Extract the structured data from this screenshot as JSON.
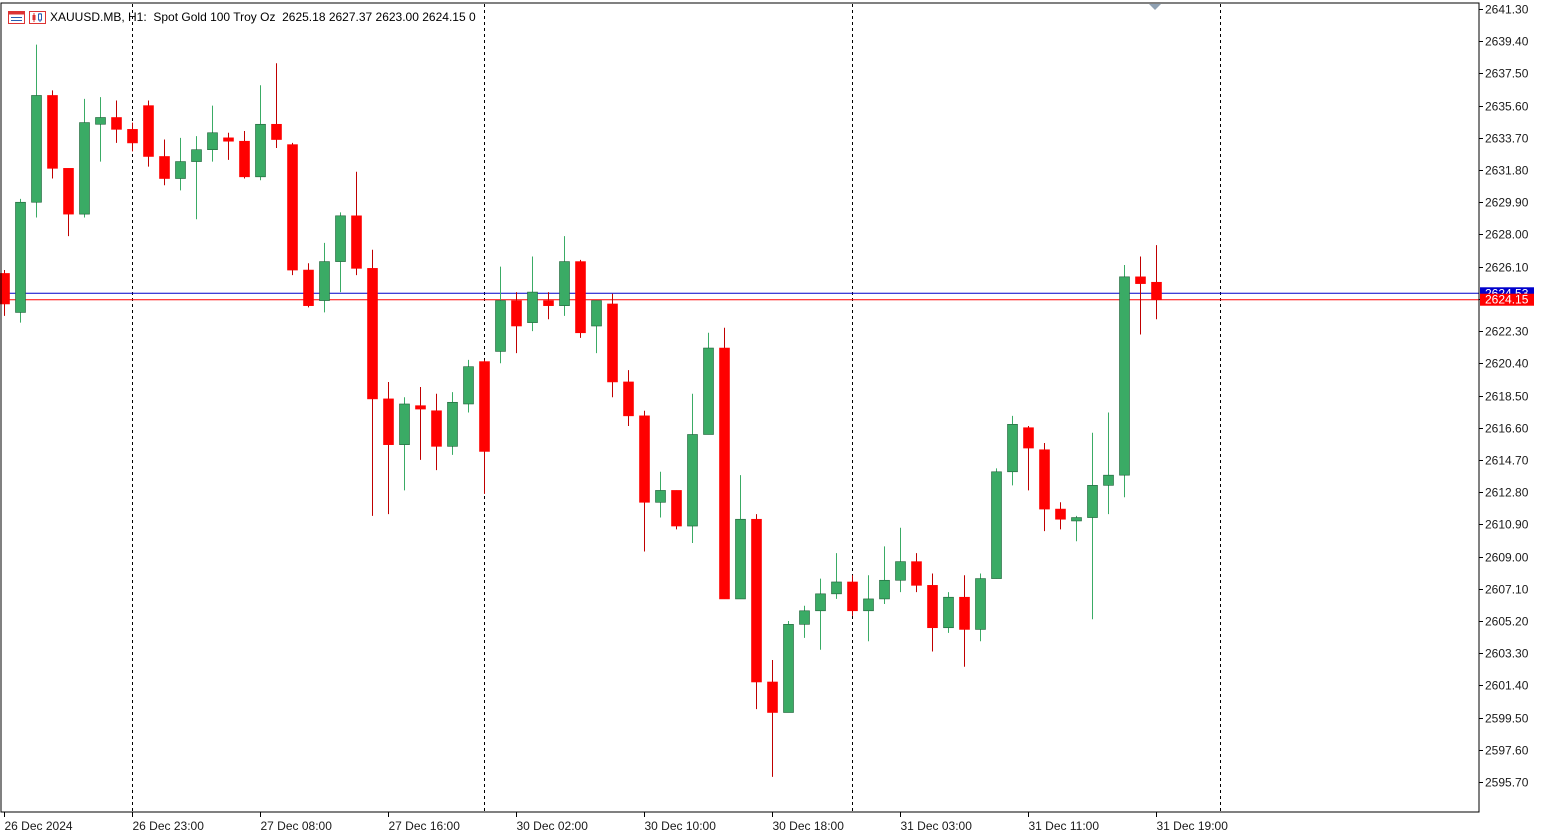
{
  "header": {
    "symbol": "XAUUSD.MB",
    "timeframe": "H1:",
    "description": "Spot Gold 100 Troy Oz",
    "ohlc": "2625.18 2627.37 2623.00 2624.15",
    "volume": "0"
  },
  "price_tags": {
    "bid": "2624.53",
    "last": "2624.15"
  },
  "colors": {
    "bull": "#3aab65",
    "bear": "#ff0000",
    "wick_bull": "#3aab65",
    "wick_bear": "#c00000",
    "bid_line": "#0000cc",
    "last_line": "#ff0000",
    "grid": "#000000",
    "axis": "#000000"
  },
  "chart_data": {
    "type": "candlestick",
    "symbol": "XAUUSD.MB",
    "timeframe": "H1",
    "ylim": [
      2594.4,
      2641.6
    ],
    "y_ticks": [
      "2641.30",
      "2639.40",
      "2637.50",
      "2635.60",
      "2633.70",
      "2631.80",
      "2629.90",
      "2628.00",
      "2626.10",
      "2624.20",
      "2622.30",
      "2620.40",
      "2618.50",
      "2616.60",
      "2614.70",
      "2612.80",
      "2610.90",
      "2609.00",
      "2607.10",
      "2605.20",
      "2603.30",
      "2601.40",
      "2599.50",
      "2597.60",
      "2595.70"
    ],
    "x_labels": [
      {
        "index": 0,
        "text": "26 Dec 2024"
      },
      {
        "index": 8,
        "text": "26 Dec 23:00"
      },
      {
        "index": 16,
        "text": "27 Dec 08:00"
      },
      {
        "index": 24,
        "text": "27 Dec 16:00"
      },
      {
        "index": 32,
        "text": "30 Dec 02:00"
      },
      {
        "index": 40,
        "text": "30 Dec 10:00"
      },
      {
        "index": 48,
        "text": "30 Dec 18:00"
      },
      {
        "index": 56,
        "text": "31 Dec 03:00"
      },
      {
        "index": 64,
        "text": "31 Dec 11:00"
      },
      {
        "index": 72,
        "text": "31 Dec 19:00"
      }
    ],
    "separators_after_index": [
      8.5,
      30.5,
      53.5,
      76.5
    ],
    "bid": 2624.53,
    "last": 2624.15,
    "candles": [
      [
        2625.7,
        2625.9,
        2623.2,
        2623.9
      ],
      [
        2623.4,
        2630.1,
        2622.8,
        2629.9
      ],
      [
        2629.9,
        2639.2,
        2629.0,
        2636.2
      ],
      [
        2636.2,
        2636.5,
        2631.3,
        2631.9
      ],
      [
        2631.9,
        2631.9,
        2627.9,
        2629.2
      ],
      [
        2629.2,
        2636.0,
        2629.0,
        2634.6
      ],
      [
        2634.5,
        2636.1,
        2632.3,
        2634.9
      ],
      [
        2634.9,
        2635.9,
        2633.4,
        2634.2
      ],
      [
        2634.2,
        2634.6,
        2632.9,
        2633.4
      ],
      [
        2635.6,
        2635.9,
        2632.0,
        2632.6
      ],
      [
        2632.6,
        2633.6,
        2630.9,
        2631.3
      ],
      [
        2631.3,
        2633.7,
        2630.6,
        2632.3
      ],
      [
        2632.3,
        2633.8,
        2628.9,
        2633.0
      ],
      [
        2633.0,
        2635.6,
        2632.3,
        2634.0
      ],
      [
        2633.7,
        2634.0,
        2632.4,
        2633.5
      ],
      [
        2633.5,
        2634.1,
        2631.3,
        2631.4
      ],
      [
        2631.4,
        2636.8,
        2631.2,
        2634.5
      ],
      [
        2634.5,
        2638.1,
        2633.1,
        2633.6
      ],
      [
        2633.3,
        2633.4,
        2625.6,
        2625.9
      ],
      [
        2625.9,
        2626.3,
        2623.7,
        2623.8
      ],
      [
        2624.1,
        2627.5,
        2623.4,
        2626.4
      ],
      [
        2626.4,
        2629.3,
        2624.6,
        2629.1
      ],
      [
        2629.1,
        2631.7,
        2625.6,
        2626.0
      ],
      [
        2626.0,
        2627.1,
        2611.4,
        2618.3
      ],
      [
        2618.3,
        2619.3,
        2611.5,
        2615.6
      ],
      [
        2615.6,
        2618.4,
        2612.9,
        2618.0
      ],
      [
        2617.9,
        2619.0,
        2614.7,
        2617.7
      ],
      [
        2617.6,
        2618.6,
        2614.1,
        2615.5
      ],
      [
        2615.5,
        2618.7,
        2615.0,
        2618.1
      ],
      [
        2618.0,
        2620.6,
        2617.5,
        2620.2
      ],
      [
        2620.5,
        2620.6,
        2612.7,
        2615.2
      ],
      [
        2621.1,
        2626.1,
        2620.4,
        2624.1
      ],
      [
        2624.1,
        2624.6,
        2621.0,
        2622.6
      ],
      [
        2622.8,
        2626.7,
        2622.3,
        2624.6
      ],
      [
        2624.1,
        2624.6,
        2623.0,
        2623.8
      ],
      [
        2623.8,
        2627.9,
        2623.2,
        2626.4
      ],
      [
        2626.4,
        2626.5,
        2621.9,
        2622.2
      ],
      [
        2622.6,
        2624.1,
        2621.0,
        2624.1
      ],
      [
        2623.9,
        2624.5,
        2618.4,
        2619.3
      ],
      [
        2619.3,
        2620.0,
        2616.7,
        2617.3
      ],
      [
        2617.3,
        2617.6,
        2609.3,
        2612.2
      ],
      [
        2612.2,
        2614.0,
        2611.3,
        2612.9
      ],
      [
        2612.9,
        2612.9,
        2610.6,
        2610.8
      ],
      [
        2610.8,
        2618.6,
        2609.8,
        2616.2
      ],
      [
        2616.2,
        2622.2,
        2616.2,
        2621.3
      ],
      [
        2621.3,
        2622.5,
        2606.5,
        2606.5
      ],
      [
        2606.5,
        2613.8,
        2606.5,
        2611.2
      ],
      [
        2611.2,
        2611.5,
        2600.0,
        2601.6
      ],
      [
        2601.6,
        2602.9,
        2596.0,
        2599.8
      ],
      [
        2599.8,
        2605.2,
        2599.8,
        2605.0
      ],
      [
        2605.0,
        2606.1,
        2604.2,
        2605.8
      ],
      [
        2605.8,
        2607.7,
        2603.5,
        2606.8
      ],
      [
        2606.8,
        2609.2,
        2606.5,
        2607.5
      ],
      [
        2607.5,
        2607.9,
        2605.5,
        2605.8
      ],
      [
        2605.8,
        2607.9,
        2604.0,
        2606.5
      ],
      [
        2606.5,
        2609.6,
        2606.2,
        2607.6
      ],
      [
        2607.6,
        2610.7,
        2606.9,
        2608.7
      ],
      [
        2608.7,
        2609.2,
        2606.9,
        2607.3
      ],
      [
        2607.3,
        2608.0,
        2603.4,
        2604.8
      ],
      [
        2604.8,
        2606.9,
        2604.5,
        2606.6
      ],
      [
        2606.6,
        2607.9,
        2602.5,
        2604.7
      ],
      [
        2604.7,
        2608.0,
        2604.0,
        2607.7
      ],
      [
        2607.7,
        2614.2,
        2607.7,
        2614.0
      ],
      [
        2614.0,
        2617.3,
        2613.2,
        2616.8
      ],
      [
        2616.6,
        2616.7,
        2612.9,
        2615.4
      ],
      [
        2615.3,
        2615.7,
        2610.5,
        2611.8
      ],
      [
        2611.8,
        2612.2,
        2610.6,
        2611.2
      ],
      [
        2611.1,
        2611.4,
        2609.9,
        2611.3
      ],
      [
        2611.3,
        2616.3,
        2605.3,
        2613.2
      ],
      [
        2613.2,
        2617.5,
        2611.5,
        2613.8
      ],
      [
        2613.8,
        2626.2,
        2612.5,
        2625.5
      ],
      [
        2625.5,
        2626.7,
        2622.1,
        2625.1
      ],
      [
        2625.18,
        2627.37,
        2623.0,
        2624.15
      ]
    ]
  }
}
